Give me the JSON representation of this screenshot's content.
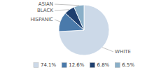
{
  "chart_data": {
    "type": "pie",
    "categories": [
      "WHITE",
      "HISPANIC",
      "BLACK",
      "ASIAN"
    ],
    "values": [
      74.1,
      12.6,
      6.8,
      6.5
    ],
    "value_labels": [
      "74.1%",
      "12.6%",
      "6.8%",
      "6.5%"
    ],
    "colors": [
      "#ccd9e8",
      "#4a7aab",
      "#1e3f6e",
      "#8aafc8"
    ],
    "legend": "bottom"
  }
}
